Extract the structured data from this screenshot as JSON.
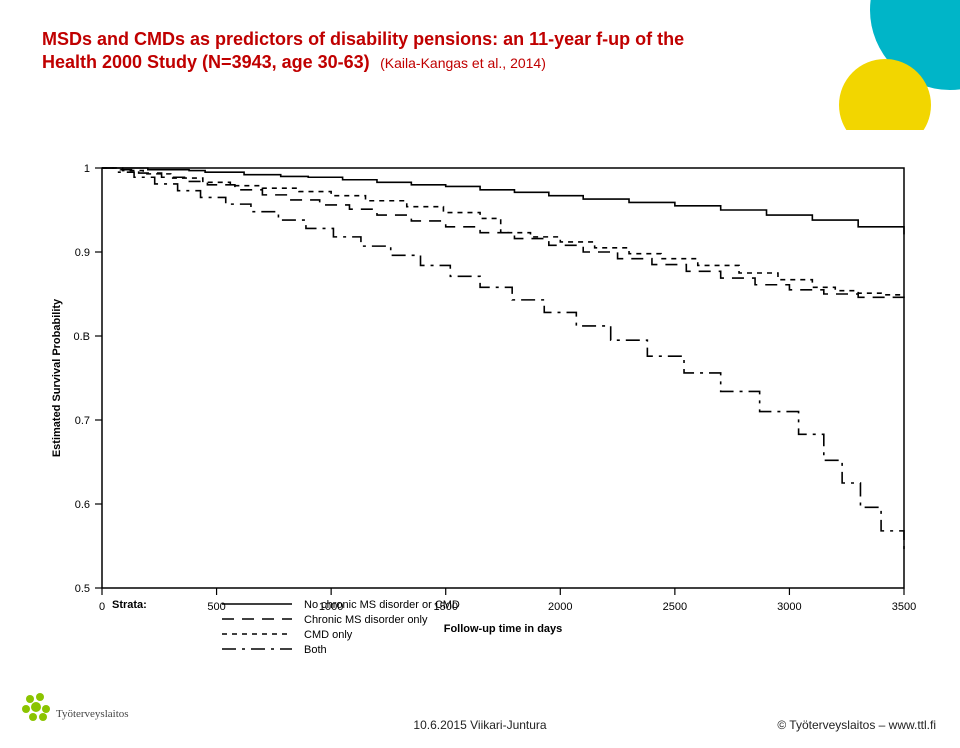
{
  "title": {
    "main": "MSDs and CMDs as predictors of disability pensions: an 11-year f-up of the Health 2000 Study (N=3943, age 30-63)",
    "ref": "(Kaila-Kangas et al., 2014)",
    "color": "#c00000",
    "fontsize_main": 18,
    "fontsize_ref": 14
  },
  "decor": {
    "circle1_color": "#00b5c8",
    "circle2_color": "#f2d600"
  },
  "footer": {
    "center": "10.6.2015 Viikari-Juntura",
    "right": "© Työterveyslaitos   –   www.ttl.fi",
    "logo_label": "Työterveyslaitos",
    "logo_color": "#8bc400"
  },
  "chart": {
    "type": "survival-step",
    "x_range": [
      0,
      3500
    ],
    "y_range": [
      0.5,
      1.0
    ],
    "x_ticks": [
      0,
      500,
      1000,
      1500,
      2000,
      2500,
      3000,
      3500
    ],
    "y_ticks": [
      0.5,
      0.6,
      0.7,
      "0.B",
      0.9,
      1.0
    ],
    "y_tick_vals": [
      0.5,
      0.6,
      0.7,
      0.8,
      0.9,
      1.0
    ],
    "x_label": "Follow-up time in days",
    "y_label": "Estimated Survival Probability",
    "label_fontsize": 11,
    "tick_fontsize": 11,
    "axis_color": "#000000",
    "line_color": "#000000",
    "line_width": 1.6,
    "legend": {
      "title": "Strata:",
      "x": 180,
      "y_top": 440,
      "items": [
        {
          "label": "No chronic MS disorder or CMD",
          "dash": "none"
        },
        {
          "label": "Chronic MS disorder only",
          "dash": "12,8"
        },
        {
          "label": "CMD only",
          "dash": "5,5"
        },
        {
          "label": "Both",
          "dash": "14,6,3,6"
        }
      ]
    },
    "series": [
      {
        "name": "none",
        "dash": "none",
        "points": [
          [
            0,
            1.0
          ],
          [
            120,
            1.0
          ],
          [
            200,
            0.998
          ],
          [
            380,
            0.997
          ],
          [
            450,
            0.995
          ],
          [
            620,
            0.992
          ],
          [
            780,
            0.99
          ],
          [
            900,
            0.989
          ],
          [
            1050,
            0.986
          ],
          [
            1200,
            0.983
          ],
          [
            1350,
            0.98
          ],
          [
            1500,
            0.978
          ],
          [
            1650,
            0.974
          ],
          [
            1800,
            0.971
          ],
          [
            1950,
            0.967
          ],
          [
            2100,
            0.963
          ],
          [
            2300,
            0.959
          ],
          [
            2500,
            0.955
          ],
          [
            2700,
            0.95
          ],
          [
            2900,
            0.944
          ],
          [
            3100,
            0.938
          ],
          [
            3300,
            0.93
          ],
          [
            3500,
            0.921
          ]
        ]
      },
      {
        "name": "ms-only",
        "dash": "12,8",
        "points": [
          [
            0,
            1.0
          ],
          [
            80,
            0.998
          ],
          [
            160,
            0.994
          ],
          [
            260,
            0.989
          ],
          [
            360,
            0.984
          ],
          [
            460,
            0.98
          ],
          [
            580,
            0.974
          ],
          [
            700,
            0.968
          ],
          [
            820,
            0.962
          ],
          [
            950,
            0.956
          ],
          [
            1080,
            0.951
          ],
          [
            1200,
            0.944
          ],
          [
            1350,
            0.937
          ],
          [
            1500,
            0.93
          ],
          [
            1650,
            0.923
          ],
          [
            1800,
            0.916
          ],
          [
            1950,
            0.908
          ],
          [
            2100,
            0.9
          ],
          [
            2250,
            0.892
          ],
          [
            2400,
            0.885
          ],
          [
            2550,
            0.877
          ],
          [
            2700,
            0.869
          ],
          [
            2850,
            0.861
          ],
          [
            3000,
            0.855
          ],
          [
            3150,
            0.85
          ],
          [
            3300,
            0.846
          ],
          [
            3500,
            0.843
          ]
        ]
      },
      {
        "name": "cmd-only",
        "dash": "5,5",
        "points": [
          [
            0,
            1.0
          ],
          [
            90,
            0.997
          ],
          [
            180,
            0.993
          ],
          [
            300,
            0.988
          ],
          [
            440,
            0.983
          ],
          [
            560,
            0.979
          ],
          [
            700,
            0.976
          ],
          [
            860,
            0.972
          ],
          [
            1000,
            0.967
          ],
          [
            1150,
            0.961
          ],
          [
            1330,
            0.954
          ],
          [
            1490,
            0.947
          ],
          [
            1650,
            0.94
          ],
          [
            1740,
            0.923
          ],
          [
            1870,
            0.918
          ],
          [
            2000,
            0.912
          ],
          [
            2150,
            0.905
          ],
          [
            2300,
            0.898
          ],
          [
            2440,
            0.892
          ],
          [
            2600,
            0.884
          ],
          [
            2780,
            0.875
          ],
          [
            2950,
            0.867
          ],
          [
            3100,
            0.858
          ],
          [
            3200,
            0.854
          ],
          [
            3300,
            0.851
          ],
          [
            3400,
            0.849
          ],
          [
            3500,
            0.848
          ]
        ]
      },
      {
        "name": "both",
        "dash": "14,6,3,6",
        "points": [
          [
            0,
            1.0
          ],
          [
            60,
            0.995
          ],
          [
            140,
            0.989
          ],
          [
            230,
            0.981
          ],
          [
            330,
            0.973
          ],
          [
            430,
            0.965
          ],
          [
            540,
            0.957
          ],
          [
            650,
            0.948
          ],
          [
            770,
            0.938
          ],
          [
            890,
            0.928
          ],
          [
            1010,
            0.918
          ],
          [
            1130,
            0.907
          ],
          [
            1260,
            0.896
          ],
          [
            1390,
            0.884
          ],
          [
            1520,
            0.871
          ],
          [
            1650,
            0.858
          ],
          [
            1790,
            0.843
          ],
          [
            1930,
            0.828
          ],
          [
            2070,
            0.812
          ],
          [
            2220,
            0.795
          ],
          [
            2380,
            0.776
          ],
          [
            2540,
            0.756
          ],
          [
            2700,
            0.734
          ],
          [
            2870,
            0.71
          ],
          [
            3040,
            0.683
          ],
          [
            3150,
            0.652
          ],
          [
            3230,
            0.625
          ],
          [
            3310,
            0.596
          ],
          [
            3400,
            0.568
          ],
          [
            3500,
            0.546
          ]
        ]
      }
    ]
  }
}
